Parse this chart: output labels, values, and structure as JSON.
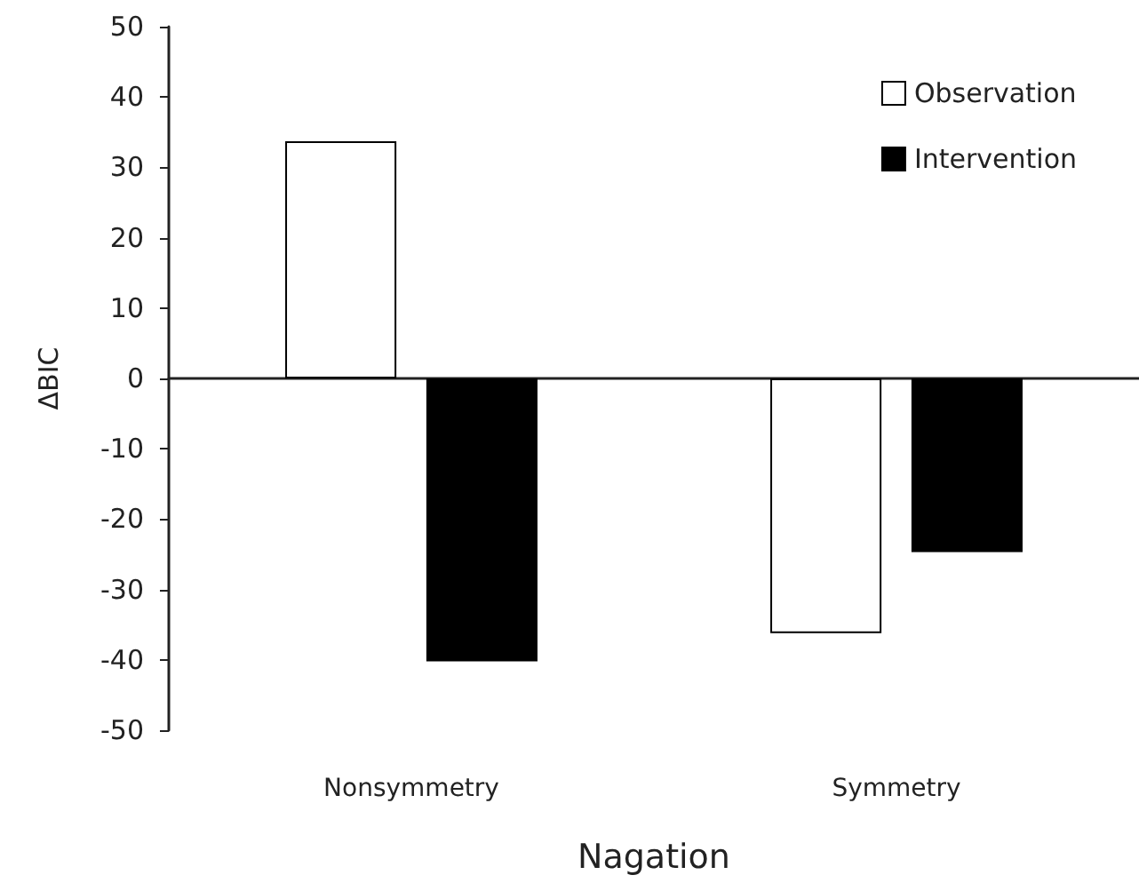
{
  "chart_data": {
    "type": "bar",
    "xlabel": "Nagation",
    "ylabel": "ΔBIC",
    "categories": [
      "Nonsymmetry",
      "Symmetry"
    ],
    "series": [
      {
        "name": "Observation",
        "color": "#ffffff",
        "values": [
          33.7,
          -36.2
        ]
      },
      {
        "name": "Intervention",
        "color": "#000000",
        "values": [
          -40.2,
          -24.7
        ]
      }
    ],
    "ylim": [
      -50,
      50
    ],
    "yticks": [
      -50,
      -40,
      -30,
      -20,
      -10,
      0,
      10,
      20,
      30,
      40,
      50
    ],
    "legend": "top right"
  }
}
